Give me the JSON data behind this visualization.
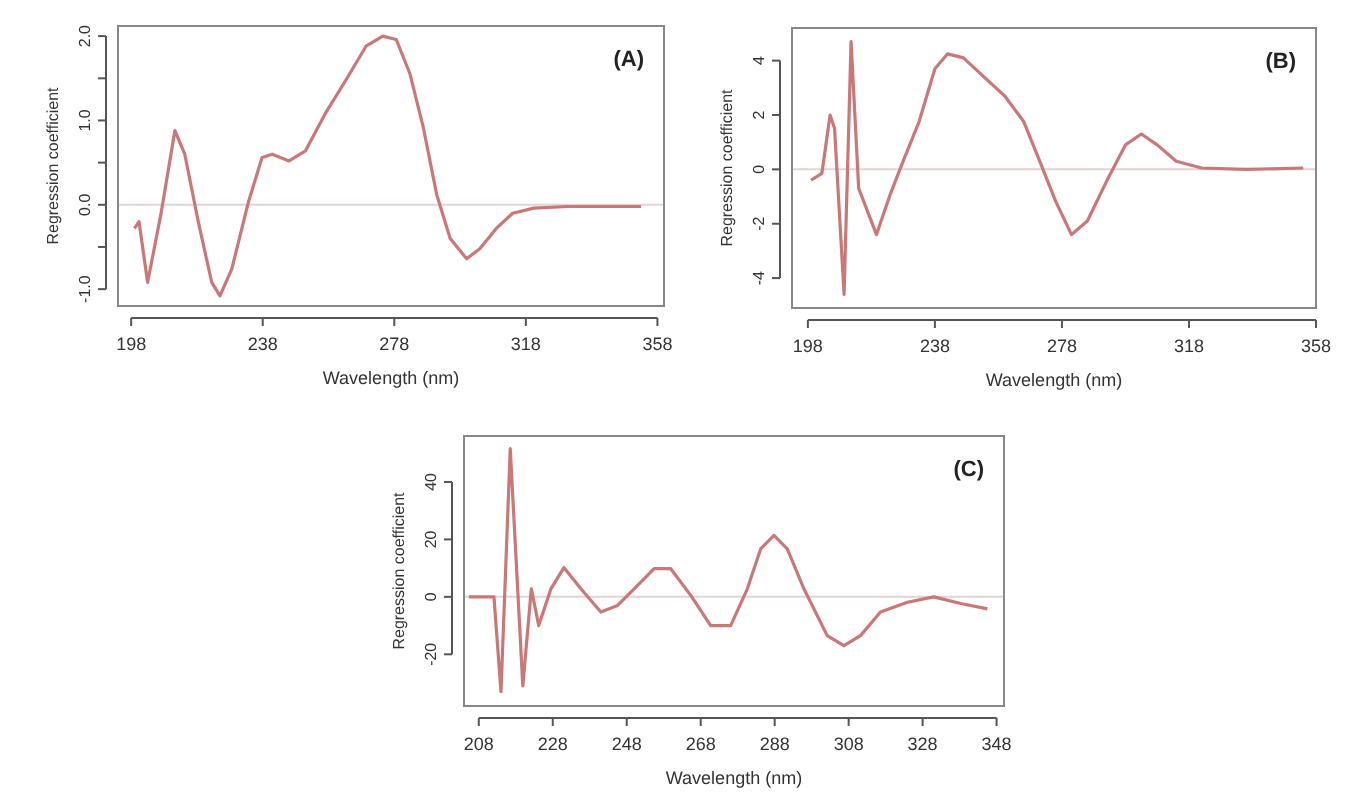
{
  "chart_data": [
    {
      "type": "line",
      "annotations": [
        "(A)"
      ],
      "xlabel": "Wavelength (nm)",
      "ylabel": "Regression coefficient",
      "xlim": [
        194,
        360
      ],
      "ylim": [
        -1.2,
        2.12
      ],
      "xticks": [
        198,
        238,
        278,
        318,
        358
      ],
      "yticks": [
        {
          "value": 2,
          "label": "2.0"
        },
        {
          "value": 1.5,
          "label": null
        },
        {
          "value": 1,
          "label": "1.0"
        },
        {
          "value": 0.5,
          "label": null
        },
        {
          "value": 0,
          "label": "0.0"
        },
        {
          "value": -0.5,
          "label": null
        },
        {
          "value": -1,
          "label": "-1.0"
        }
      ],
      "grid": false,
      "ref_lines": [
        {
          "axis": "y",
          "value": 0,
          "color": "#e2d4d4"
        }
      ],
      "series": [
        {
          "color": "#c97878",
          "x": [
            199,
            200.4,
            203,
            207,
            211.3,
            214.3,
            218.4,
            222.5,
            225,
            228.6,
            233.7,
            237.8,
            240.9,
            246,
            251,
            257,
            263.3,
            269.4,
            274.5,
            278.6,
            282.7,
            286.8,
            290.9,
            295,
            300,
            304,
            309,
            314,
            320.4,
            330.7,
            353
          ],
          "values": [
            -0.28,
            -0.2,
            -0.92,
            -0.12,
            0.88,
            0.6,
            -0.2,
            -0.92,
            -1.08,
            -0.76,
            0.04,
            0.56,
            0.6,
            0.52,
            0.64,
            1.08,
            1.48,
            1.88,
            2.0,
            1.96,
            1.56,
            0.92,
            0.12,
            -0.4,
            -0.64,
            -0.52,
            -0.28,
            -0.1,
            -0.04,
            -0.02,
            -0.02
          ]
        }
      ]
    },
    {
      "type": "line",
      "annotations": [
        "(B)"
      ],
      "xlabel": "Wavelength (nm)",
      "ylabel": "Regression coefficient",
      "xlim": [
        193,
        358
      ],
      "ylim": [
        -5.1,
        5.2
      ],
      "xticks": [
        198,
        238,
        278,
        318,
        358
      ],
      "yticks": [
        4,
        2,
        0,
        -2,
        -4
      ],
      "grid": false,
      "ref_lines": [
        {
          "axis": "y",
          "value": 0,
          "color": "#e2d4d4"
        }
      ],
      "series": [
        {
          "color": "#c97878",
          "x": [
            199,
            202.4,
            205,
            206.4,
            209.4,
            211.6,
            214,
            219.6,
            224,
            228,
            233,
            238,
            242,
            247,
            253,
            260,
            266,
            271,
            276,
            281,
            286,
            292,
            298,
            303,
            308,
            314,
            322,
            336,
            354
          ],
          "values": [
            -0.4,
            -0.15,
            2.0,
            1.5,
            -4.6,
            4.7,
            -0.7,
            -2.4,
            -0.9,
            0.3,
            1.75,
            3.7,
            4.25,
            4.1,
            3.45,
            2.7,
            1.75,
            0.3,
            -1.17,
            -2.4,
            -1.9,
            -0.45,
            0.9,
            1.3,
            0.9,
            0.3,
            0.05,
            0,
            0.05
          ]
        }
      ]
    },
    {
      "type": "line",
      "annotations": [
        "(C)"
      ],
      "xlabel": "Wavelength (nm)",
      "ylabel": "Regression coefficient",
      "xlim": [
        204,
        350
      ],
      "ylim": [
        -38,
        56
      ],
      "xticks": [
        208,
        228,
        248,
        268,
        288,
        308,
        328,
        348
      ],
      "yticks": [
        40,
        20,
        0,
        -20
      ],
      "grid": false,
      "ref_lines": [
        {
          "axis": "y",
          "value": 0,
          "color": "#e2d4d4"
        }
      ],
      "series": [
        {
          "color": "#c97878",
          "x": [
            205.3,
            212.1,
            214,
            216.5,
            218.6,
            219.9,
            222.2,
            224.2,
            227.5,
            231,
            235.6,
            241,
            245.5,
            250,
            255.4,
            259.9,
            265.3,
            270.7,
            276.1,
            280.6,
            284.2,
            287.8,
            291.4,
            295.9,
            302.2,
            306.7,
            311.2,
            316.6,
            323.9,
            331,
            338.3,
            345.5
          ],
          "values": [
            0,
            0,
            -33,
            51.6,
            0.5,
            -31,
            2.8,
            -10,
            2.8,
            10.2,
            2.8,
            -5.3,
            -3,
            2.8,
            9.8,
            9.8,
            0.5,
            -10,
            -10,
            2.8,
            16.7,
            21.4,
            16.7,
            2.8,
            -13.5,
            -17,
            -13.5,
            -5.3,
            -1.9,
            0,
            -2.3,
            -4.2
          ]
        }
      ]
    }
  ]
}
